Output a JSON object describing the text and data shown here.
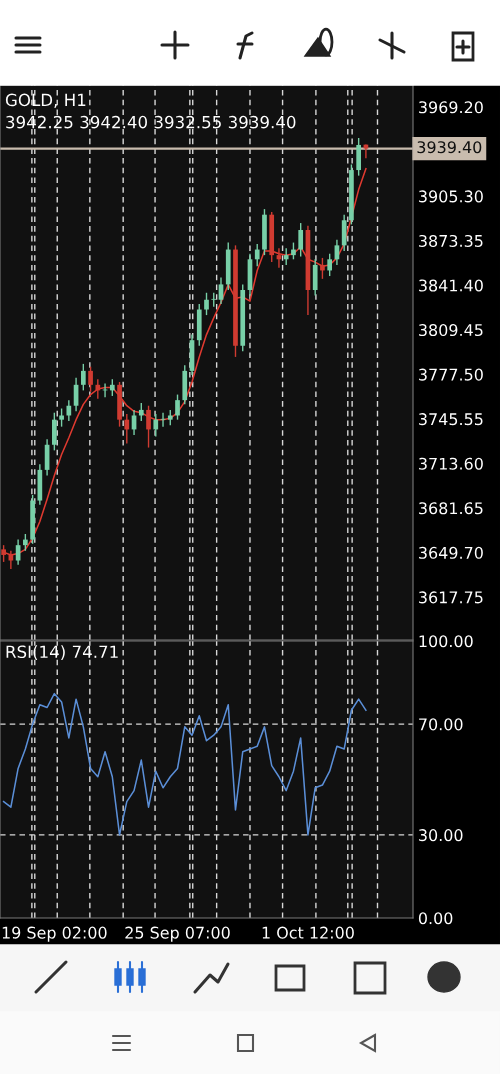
{
  "chart_data": [
    {
      "type": "candlestick",
      "title": "GOLD, H1",
      "subtitle": "3942.25 3942.40 3932.55 3939.40",
      "categories": [
        null,
        null,
        null,
        null,
        null,
        null,
        null,
        null,
        null,
        null,
        null,
        null,
        null,
        null,
        null,
        null,
        null,
        null,
        null,
        null,
        null,
        null,
        null,
        null,
        null,
        null,
        null,
        null,
        null,
        null,
        null,
        null,
        null,
        null,
        null,
        null,
        null,
        null,
        null,
        null,
        null,
        null,
        null,
        null,
        null,
        null,
        null,
        null,
        null,
        null,
        null,
        null,
        null,
        null,
        null,
        null,
        null
      ],
      "ohlc": [
        [
          3652,
          3655,
          3643,
          3648
        ],
        [
          3648,
          3651,
          3638,
          3644
        ],
        [
          3644,
          3659,
          3641,
          3655
        ],
        [
          3655,
          3663,
          3651,
          3659
        ],
        [
          3659,
          3691,
          3656,
          3687
        ],
        [
          3687,
          3713,
          3684,
          3709
        ],
        [
          3709,
          3731,
          3705,
          3727
        ],
        [
          3727,
          3750,
          3723,
          3745
        ],
        [
          3745,
          3753,
          3740,
          3748
        ],
        [
          3748,
          3759,
          3744,
          3755
        ],
        [
          3755,
          3775,
          3751,
          3770
        ],
        [
          3770,
          3785,
          3766,
          3780
        ],
        [
          3780,
          3783,
          3765,
          3770
        ],
        [
          3770,
          3774,
          3760,
          3766
        ],
        [
          3766,
          3771,
          3761,
          3766
        ],
        [
          3766,
          3774,
          3762,
          3770
        ],
        [
          3770,
          3772,
          3740,
          3745
        ],
        [
          3745,
          3749,
          3728,
          3738
        ],
        [
          3738,
          3752,
          3734,
          3748
        ],
        [
          3748,
          3757,
          3744,
          3752
        ],
        [
          3752,
          3755,
          3725,
          3738
        ],
        [
          3738,
          3749,
          3733,
          3745
        ],
        [
          3745,
          3750,
          3740,
          3745
        ],
        [
          3745,
          3752,
          3741,
          3748
        ],
        [
          3748,
          3763,
          3745,
          3759
        ],
        [
          3759,
          3784,
          3756,
          3780
        ],
        [
          3780,
          3806,
          3777,
          3802
        ],
        [
          3802,
          3828,
          3798,
          3824
        ],
        [
          3824,
          3836,
          3820,
          3831
        ],
        [
          3831,
          3836,
          3826,
          3831
        ],
        [
          3831,
          3847,
          3828,
          3842
        ],
        [
          3842,
          3872,
          3838,
          3867
        ],
        [
          3867,
          3870,
          3790,
          3798
        ],
        [
          3798,
          3842,
          3794,
          3838
        ],
        [
          3838,
          3864,
          3834,
          3860
        ],
        [
          3860,
          3871,
          3855,
          3867
        ],
        [
          3867,
          3896,
          3863,
          3892
        ],
        [
          3892,
          3894,
          3858,
          3863
        ],
        [
          3863,
          3868,
          3854,
          3860
        ],
        [
          3860,
          3868,
          3856,
          3863
        ],
        [
          3863,
          3872,
          3860,
          3867
        ],
        [
          3867,
          3886,
          3862,
          3881
        ],
        [
          3881,
          3884,
          3820,
          3838
        ],
        [
          3838,
          3860,
          3834,
          3856
        ],
        [
          3856,
          3861,
          3846,
          3852
        ],
        [
          3852,
          3864,
          3848,
          3860
        ],
        [
          3860,
          3874,
          3856,
          3870
        ],
        [
          3870,
          3892,
          3866,
          3888
        ],
        [
          3888,
          3928,
          3885,
          3924
        ],
        [
          3924,
          3947,
          3920,
          3942
        ],
        [
          3942.25,
          3942.4,
          3932.55,
          3939.4
        ],
        null,
        null,
        null,
        null,
        null,
        null
      ],
      "colors": [
        "#d03b31",
        "#d03b31",
        "#78d0a8",
        "#78d0a8",
        "#78d0a8",
        "#78d0a8",
        "#78d0a8",
        "#78d0a8",
        "#78d0a8",
        "#78d0a8",
        "#78d0a8",
        "#78d0a8",
        "#d03b31",
        "#d03b31",
        "#78d0a8",
        "#78d0a8",
        "#d03b31",
        "#d03b31",
        "#78d0a8",
        "#78d0a8",
        "#d03b31",
        "#78d0a8",
        "#78d0a8",
        "#78d0a8",
        "#78d0a8",
        "#78d0a8",
        "#78d0a8",
        "#78d0a8",
        "#78d0a8",
        "#78d0a8",
        "#78d0a8",
        "#78d0a8",
        "#d03b31",
        "#78d0a8",
        "#78d0a8",
        "#78d0a8",
        "#78d0a8",
        "#d03b31",
        "#d03b31",
        "#78d0a8",
        "#78d0a8",
        "#78d0a8",
        "#d03b31",
        "#78d0a8",
        "#d03b31",
        "#78d0a8",
        "#78d0a8",
        "#78d0a8",
        "#78d0a8",
        "#78d0a8",
        "#d03b31",
        null,
        null,
        null,
        null,
        null,
        null
      ],
      "series": [
        {
          "type": "line",
          "color": "#e03a30",
          "values": [
            3650,
            3648,
            3649,
            3652,
            3660,
            3672,
            3688,
            3705,
            3720,
            3732,
            3745,
            3756,
            3763,
            3767,
            3768,
            3768,
            3762,
            3755,
            3751,
            3750,
            3747,
            3745,
            3745,
            3746,
            3750,
            3758,
            3772,
            3790,
            3806,
            3818,
            3829,
            3842,
            3832,
            3833,
            3830,
            3852,
            3866,
            3866,
            3864,
            3863,
            3864,
            3869,
            3860,
            3858,
            3855,
            3856,
            3861,
            3871,
            3890,
            3910,
            3925,
            null,
            null,
            null,
            null,
            null,
            null
          ]
        }
      ],
      "ylim": [
        3587,
        3985
      ],
      "yticks": [
        {
          "value": 3617.75,
          "label": "3617.75"
        },
        {
          "value": 3649.7,
          "label": "3649.70"
        },
        {
          "value": 3681.65,
          "label": "3681.65"
        },
        {
          "value": 3713.6,
          "label": "3713.60"
        },
        {
          "value": 3745.55,
          "label": "3745.55"
        },
        {
          "value": 3777.5,
          "label": "3777.50"
        },
        {
          "value": 3809.45,
          "label": "3809.45"
        },
        {
          "value": 3841.4,
          "label": "3841.40"
        },
        {
          "value": 3873.35,
          "label": "3873.35"
        },
        {
          "value": 3905.3,
          "label": "3905.30"
        },
        {
          "value": 3969.2,
          "label": "3969.20"
        }
      ],
      "ref_lines": [
        {
          "axis": "y",
          "value": 3939.4,
          "label": "3939.40",
          "color": "#c9bcae",
          "line_style": "solid"
        }
      ],
      "grid": "x",
      "tick_labels": "y"
    },
    {
      "type": "line",
      "title": "RSI(14) 74.71",
      "categories": [
        null,
        null,
        null,
        null,
        null,
        null,
        null,
        "19 Sep 02:00",
        null,
        null,
        null,
        null,
        null,
        null,
        null,
        null,
        null,
        null,
        null,
        null,
        null,
        null,
        null,
        null,
        "25 Sep 07:00",
        null,
        null,
        null,
        null,
        null,
        null,
        null,
        null,
        null,
        null,
        null,
        null,
        null,
        null,
        null,
        null,
        null,
        "1 Oct 12:00",
        null,
        null,
        null,
        null,
        null,
        null,
        null,
        null,
        null,
        null,
        null,
        null,
        null,
        null
      ],
      "series": [
        {
          "color": "#5b8fd8",
          "values": [
            42,
            40,
            54,
            61,
            70,
            77,
            76,
            81,
            78,
            65,
            79,
            69,
            54,
            51,
            60,
            51,
            30,
            42,
            46,
            57,
            40,
            53,
            47,
            51,
            54,
            69,
            66,
            73,
            64,
            66,
            69,
            77,
            39,
            60,
            61,
            62,
            69,
            55,
            51,
            46,
            53,
            65,
            30,
            47,
            48,
            53,
            62,
            61,
            75,
            79,
            75,
            null,
            null,
            null,
            null,
            null,
            null
          ]
        }
      ],
      "ylim": [
        0,
        100
      ],
      "yticks": [
        {
          "value": 0,
          "label": "0.00"
        },
        {
          "value": 30,
          "label": "30.00"
        },
        {
          "value": 70,
          "label": "70.00"
        },
        {
          "value": 100,
          "label": "100.00"
        }
      ],
      "ref_lines": [
        {
          "axis": "y",
          "value": 30,
          "color": "#d8d8d8",
          "line_style": "dashed"
        },
        {
          "axis": "y",
          "value": 70,
          "color": "#d8d8d8",
          "line_style": "dashed"
        }
      ],
      "grid": "x"
    }
  ]
}
